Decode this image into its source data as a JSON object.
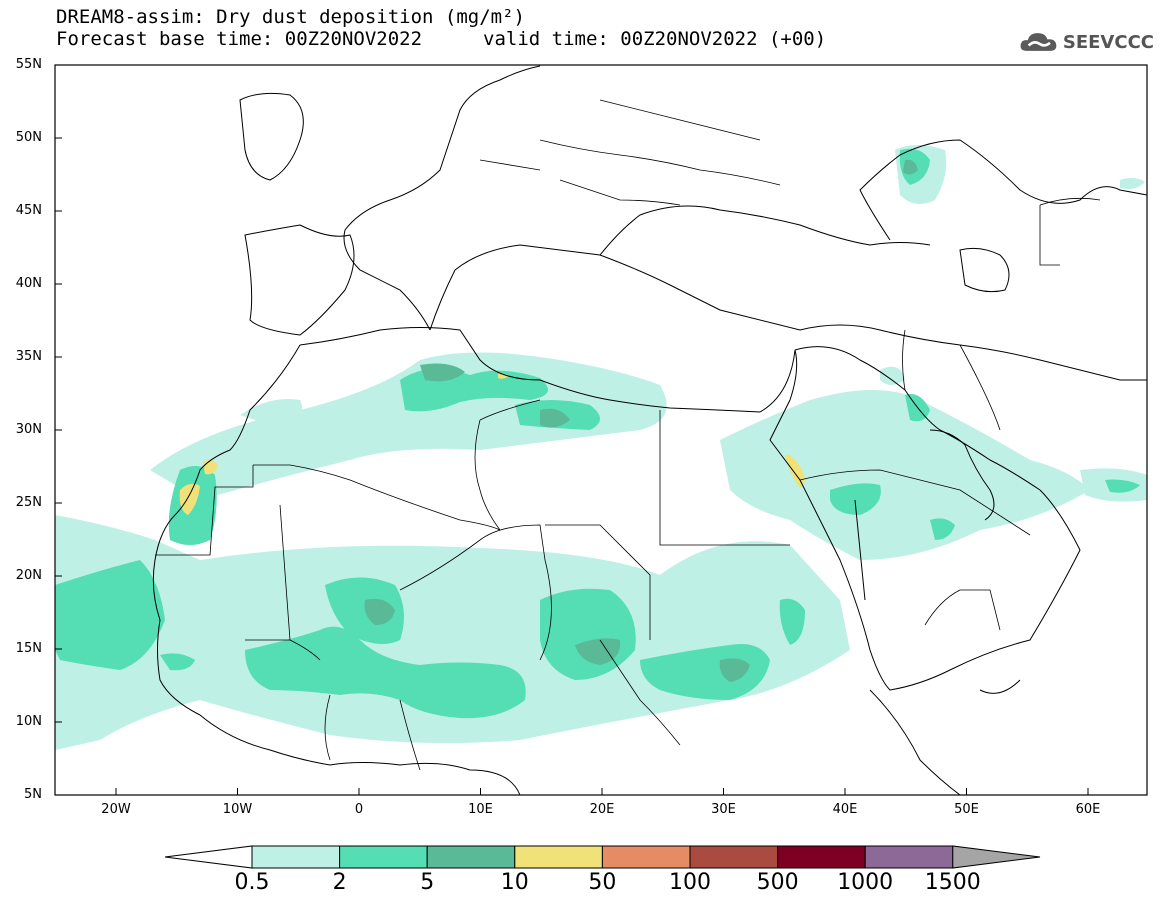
{
  "header": {
    "title": "DREAM8-assim: Dry dust deposition (mg/m²)",
    "forecast_base": "Forecast base time: 00Z20NOV2022",
    "valid_time": "valid time: 00Z20NOV2022 (+00)",
    "logo_text": "SEEVCCC"
  },
  "map": {
    "lat_labels": [
      "55N",
      "50N",
      "45N",
      "40N",
      "35N",
      "30N",
      "25N",
      "20N",
      "15N",
      "10N",
      "5N"
    ],
    "lon_labels": [
      "20W",
      "10W",
      "0",
      "10E",
      "20E",
      "30E",
      "40E",
      "50E",
      "60E"
    ]
  },
  "colorbar": {
    "labels": [
      "0.5",
      "2",
      "5",
      "10",
      "50",
      "100",
      "500",
      "1000",
      "1500"
    ],
    "colors": [
      "#ffffff",
      "#bff0e6",
      "#55ddb4",
      "#5ab996",
      "#f0e178",
      "#e68c64",
      "#aa4b41",
      "#7d0023",
      "#8c6996",
      "#a5a5a5"
    ]
  }
}
